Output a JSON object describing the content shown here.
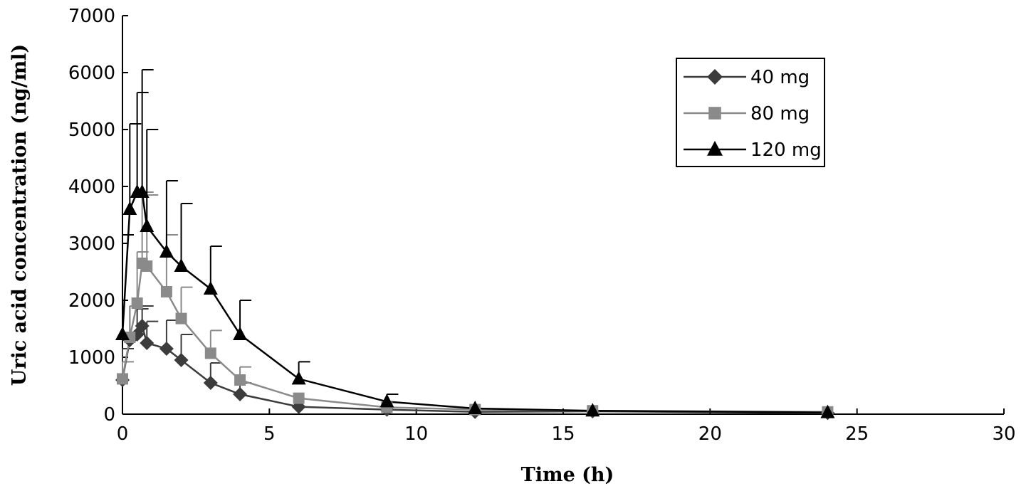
{
  "chart_data": {
    "type": "line",
    "xlabel": "Time (h)",
    "ylabel": "Uric acid concentration (ng/ml)",
    "xlim": [
      0,
      30
    ],
    "ylim": [
      0,
      7000
    ],
    "x_ticks": [
      "0",
      "5",
      "10",
      "15",
      "20",
      "25",
      "30"
    ],
    "y_ticks": [
      "0",
      "1000",
      "2000",
      "3000",
      "4000",
      "5000",
      "6000",
      "7000"
    ],
    "grid": false,
    "legend_position": "top-right",
    "series": [
      {
        "name": "40 mg",
        "marker": "diamond",
        "color": "#3c3c3c",
        "x": [
          0,
          0.25,
          0.5,
          0.67,
          0.83,
          1.5,
          2,
          3,
          4,
          6,
          9,
          12,
          16,
          24
        ],
        "y": [
          600,
          1300,
          1400,
          1550,
          1250,
          1150,
          950,
          550,
          350,
          130,
          80,
          40,
          50,
          20
        ],
        "error": [
          550,
          600,
          450,
          350,
          380,
          500,
          450,
          350,
          200,
          0,
          0,
          0,
          0,
          0
        ]
      },
      {
        "name": "80 mg",
        "marker": "square",
        "color": "#8a8a8a",
        "x": [
          0,
          0.25,
          0.5,
          0.67,
          0.83,
          1.5,
          2,
          3,
          4,
          6,
          9,
          12,
          16,
          24
        ],
        "y": [
          620,
          1350,
          1950,
          2650,
          2600,
          2150,
          1680,
          1070,
          600,
          280,
          120,
          80,
          60,
          40
        ],
        "error": [
          300,
          550,
          900,
          1250,
          1250,
          1000,
          550,
          400,
          230,
          0,
          0,
          0,
          0,
          0
        ]
      },
      {
        "name": "120 mg",
        "marker": "triangle",
        "color": "#000000",
        "x": [
          0,
          0.25,
          0.5,
          0.67,
          0.83,
          1.5,
          2,
          3,
          4,
          6,
          9,
          12,
          16,
          24
        ],
        "y": [
          1400,
          3600,
          3900,
          3900,
          3300,
          2850,
          2600,
          2200,
          1400,
          620,
          220,
          100,
          60,
          30
        ],
        "error": [
          1750,
          1500,
          1750,
          2150,
          1700,
          1250,
          1100,
          750,
          600,
          300,
          130,
          0,
          0,
          0
        ]
      }
    ]
  }
}
